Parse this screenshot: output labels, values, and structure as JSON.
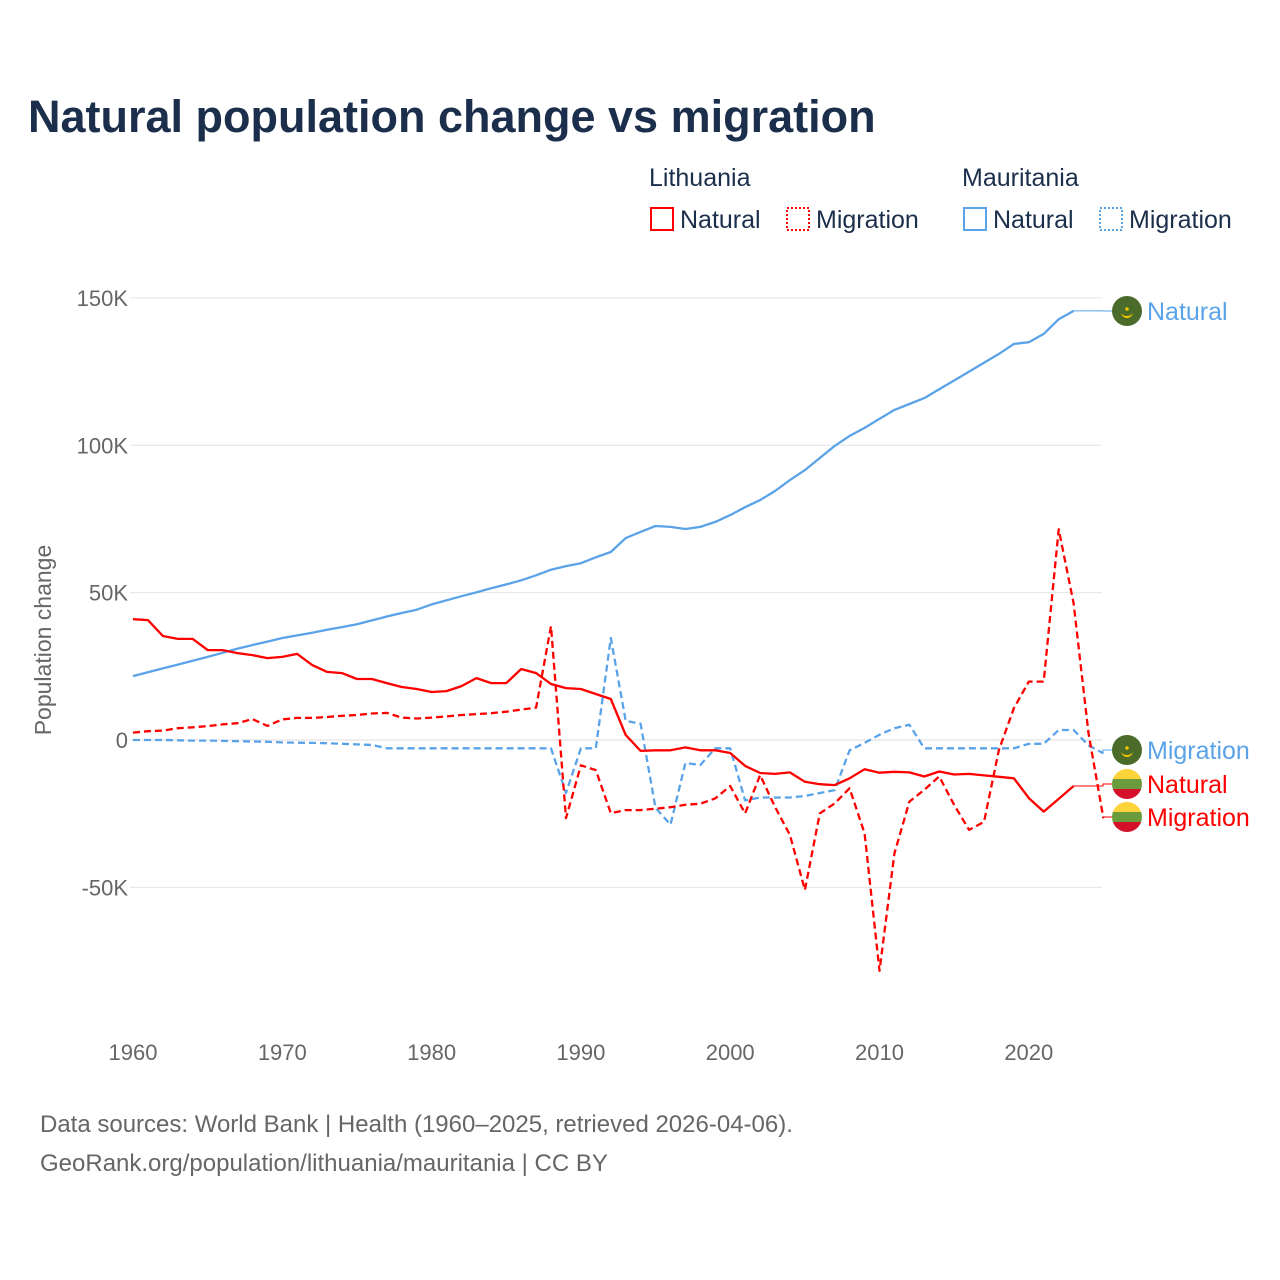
{
  "chart_data": {
    "type": "line",
    "title": "Natural population change vs migration",
    "ylabel": "Population change",
    "xlabel": "",
    "xlim": [
      1960,
      2025
    ],
    "ylim": [
      -85000,
      155000
    ],
    "grid": true,
    "y_ticks": [
      {
        "value": 150000,
        "label": "150K"
      },
      {
        "value": 100000,
        "label": "100K"
      },
      {
        "value": 50000,
        "label": "50K"
      },
      {
        "value": 0,
        "label": "0"
      },
      {
        "value": -50000,
        "label": "-50K"
      }
    ],
    "x_ticks": [
      {
        "value": 1960,
        "label": "1960"
      },
      {
        "value": 1970,
        "label": "1970"
      },
      {
        "value": 1980,
        "label": "1980"
      },
      {
        "value": 1990,
        "label": "1990"
      },
      {
        "value": 2000,
        "label": "2000"
      },
      {
        "value": 2010,
        "label": "2010"
      },
      {
        "value": 2020,
        "label": "2020"
      }
    ],
    "legend": {
      "placement": "top-right",
      "groups": [
        {
          "title": "Lithuania",
          "items": [
            {
              "label": "Natural",
              "style": "solid"
            },
            {
              "label": "Migration",
              "style": "dotted"
            }
          ]
        },
        {
          "title": "Mauritania",
          "items": [
            {
              "label": "Natural",
              "style": "solid"
            },
            {
              "label": "Migration",
              "style": "dotted"
            }
          ]
        }
      ]
    },
    "series": [
      {
        "name": "Mauritania Natural",
        "country": "Mauritania",
        "kind": "Natural",
        "label": "Natural",
        "color": "#5ba3e8",
        "dash": false,
        "start_year": 1960,
        "values": [
          21.7,
          23,
          24.3,
          25.6,
          26.9,
          28.2,
          29.6,
          31,
          32.2,
          33.4,
          34.6,
          35.5,
          36.4,
          37.4,
          38.3,
          39.3,
          40.6,
          41.9,
          43.1,
          44.2,
          46,
          47.4,
          48.8,
          50.1,
          51.5,
          52.8,
          54.2,
          55.9,
          57.8,
          59,
          60,
          62,
          63.8,
          68.5,
          70.6,
          72.6,
          72.3,
          71.6,
          72.3,
          74,
          76.3,
          79,
          81.4,
          84.5,
          88.2,
          91.6,
          95.7,
          99.8,
          103.2,
          105.9,
          109,
          112,
          114,
          116,
          119,
          122,
          125,
          128,
          131,
          134.4,
          135,
          137.8,
          142.8,
          145.6
        ]
      },
      {
        "name": "Mauritania Migration",
        "country": "Mauritania",
        "kind": "Migration",
        "label": "Migration",
        "color": "#5ba3e8",
        "dash": true,
        "start_year": 1960,
        "values": [
          0,
          0,
          0,
          -0.1,
          -0.2,
          -0.2,
          -0.3,
          -0.4,
          -0.5,
          -0.6,
          -0.8,
          -0.9,
          -1,
          -1.1,
          -1.3,
          -1.5,
          -1.7,
          -2.8,
          -2.8,
          -2.8,
          -2.8,
          -2.8,
          -2.8,
          -2.8,
          -2.8,
          -2.8,
          -2.8,
          -2.8,
          -2.8,
          -18,
          -2.8,
          -2.8,
          34.6,
          6.5,
          5.5,
          -23,
          -28.7,
          -7.8,
          -8.5,
          -2.8,
          -2.8,
          -20.5,
          -19.5,
          -19.5,
          -19.5,
          -19,
          -18,
          -17,
          -3.5,
          -1,
          1.8,
          4,
          5.2,
          -2.8,
          -2.8,
          -2.8,
          -2.8,
          -2.8,
          -2.8,
          -2.8,
          -1.3,
          -1.3,
          3.4,
          3.4,
          -1.8,
          -4.5
        ]
      },
      {
        "name": "Lithuania Natural",
        "country": "Lithuania",
        "kind": "Natural",
        "label": "Natural",
        "color": "#ff0000",
        "dash": false,
        "start_year": 1960,
        "values": [
          41,
          40.7,
          35.3,
          34.3,
          34.3,
          30.5,
          30.5,
          29.5,
          28.8,
          27.8,
          28.2,
          29.2,
          25.4,
          23.1,
          22.7,
          20.7,
          20.7,
          19.3,
          18,
          17.3,
          16.3,
          16.6,
          18.3,
          21,
          19.3,
          19.3,
          24.1,
          22.7,
          19,
          17.6,
          17.3,
          15.6,
          13.9,
          1.7,
          -3.7,
          -3.5,
          -3.5,
          -2.5,
          -3.5,
          -3.5,
          -4.4,
          -8.8,
          -11.2,
          -11.5,
          -11,
          -14.2,
          -15,
          -15.3,
          -13,
          -9.9,
          -11.1,
          -10.8,
          -11,
          -12.4,
          -10.7,
          -11.7,
          -11.5,
          -12,
          -12.5,
          -13,
          -19.7,
          -24.3,
          -20,
          -15.6
        ]
      },
      {
        "name": "Lithuania Migration",
        "country": "Lithuania",
        "kind": "Migration",
        "label": "Migration",
        "color": "#ff0000",
        "dash": true,
        "start_year": 1960,
        "values": [
          2.5,
          3,
          3.2,
          4,
          4.3,
          4.7,
          5.3,
          5.7,
          7.1,
          4.8,
          7,
          7.5,
          7.5,
          7.8,
          8.2,
          8.5,
          9,
          9.2,
          7.6,
          7.3,
          7.6,
          8,
          8.5,
          8.8,
          9.1,
          9.6,
          10.3,
          11,
          38.6,
          -26.5,
          -8.6,
          -10.2,
          -24.8,
          -23.8,
          -23.8,
          -23.3,
          -22.8,
          -22,
          -21.6,
          -19.8,
          -15.6,
          -24.9,
          -11.9,
          -22.7,
          -32.2,
          -50.9,
          -24.9,
          -21.5,
          -16.4,
          -31.7,
          -78.3,
          -38.5,
          -20.9,
          -16.9,
          -12.4,
          -22,
          -30.5,
          -27.8,
          -3.4,
          10.8,
          19.8,
          19.8,
          71.5,
          46.4,
          2.3,
          -26.5
        ]
      }
    ],
    "value_unit": "thousands"
  },
  "footer": {
    "line1": "Data sources: World Bank | Health (1960–2025, retrieved 2026-04-06).",
    "line2": "GeoRank.org/population/lithuania/mauritania | CC BY"
  }
}
